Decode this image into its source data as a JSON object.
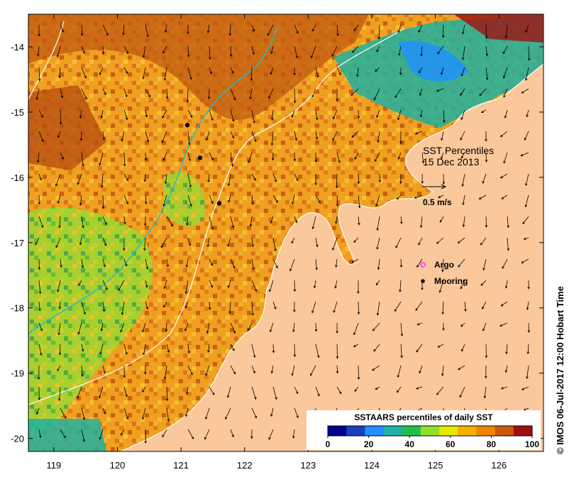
{
  "map": {
    "title_line1": "SST Percentiles",
    "title_line2": "15 Dec 2013",
    "vector_scale_label": "0.5 m/s",
    "x_ticks": [
      "119",
      "120",
      "121",
      "122",
      "123",
      "124",
      "125",
      "126"
    ],
    "y_ticks": [
      "-14",
      "-15",
      "-16",
      "-17",
      "-18",
      "-19",
      "-20"
    ],
    "lon_range": [
      118.6,
      126.7
    ],
    "lat_range": [
      -20.2,
      -13.5
    ]
  },
  "legend": {
    "argo_label": "Argo",
    "mooring_label": "Mooring",
    "argo_color": "#ff33ff",
    "mooring_color": "#000000"
  },
  "colorbar": {
    "title": "SSTAARS percentiles of daily SST",
    "tick_labels": [
      "0",
      "20",
      "40",
      "60",
      "80",
      "100"
    ],
    "colors": [
      "#00008b",
      "#1a3fb8",
      "#1e90ff",
      "#20b2aa",
      "#22c04a",
      "#8ee02a",
      "#e8e800",
      "#f5b000",
      "#f08400",
      "#c85a0a",
      "#a01010"
    ]
  },
  "credit": "© IMOS 06-Jul-2017 12:00 Hobart Time",
  "land_color": "#fbc89b",
  "moorings": [
    {
      "lon": 121.1,
      "lat": -15.2
    },
    {
      "lon": 121.3,
      "lat": -15.7
    },
    {
      "lon": 121.6,
      "lat": -16.4
    }
  ]
}
